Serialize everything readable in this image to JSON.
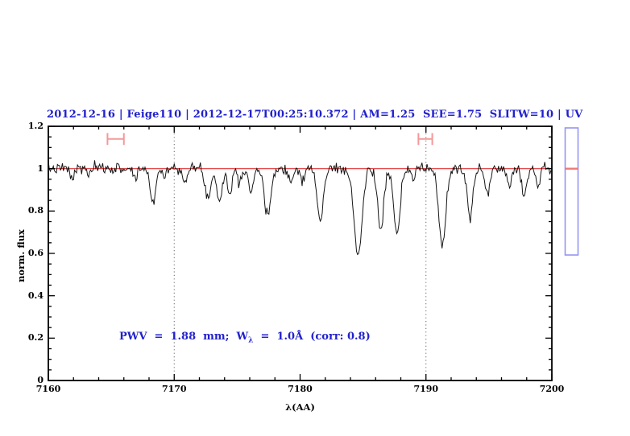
{
  "header": {
    "title": "2012-12-16 | Feige110 | 2012-12-17T00:25:10.372 | AM=1.25  SEE=1.75  SLITW=10 | UV",
    "color": "#2121cd"
  },
  "annotation": {
    "part1": "PWV  =  1.88  mm;  W",
    "sub": "λ",
    "part2": "  =  1.0Å  (corr: 0.8)",
    "color": "#2121cd"
  },
  "chart_data": {
    "type": "line",
    "title": "",
    "xlabel": "λ(AA)",
    "ylabel": "norm. flux",
    "xlim": [
      7160,
      7200
    ],
    "ylim": [
      0,
      1.2
    ],
    "x_tick_values": [
      7160,
      7170,
      7180,
      7190,
      7200
    ],
    "x_tick_labels": [
      "7160",
      "7170",
      "7180",
      "7190",
      "7200"
    ],
    "x_minor_step": 2,
    "y_tick_values": [
      0,
      0.2,
      0.4,
      0.6,
      0.8,
      1,
      1.2
    ],
    "y_tick_labels": [
      "0",
      "0.2",
      "0.4",
      "0.6",
      "0.8",
      "1",
      "1.2"
    ],
    "y_minor_step": 0.05,
    "grid": false,
    "continuum_level": 1.0,
    "continuum_color": "#e03232",
    "spectrum_color": "#151515",
    "guide_color": "#666666",
    "marker_color": "#f49898",
    "noise_sigma": 0.013,
    "sample_step": 0.08,
    "guides_x": [
      7170,
      7190
    ],
    "absorption_lines": [
      {
        "center": 7161.9,
        "depth": 0.05,
        "sigma": 0.15
      },
      {
        "center": 7163.2,
        "depth": 0.03,
        "sigma": 0.12
      },
      {
        "center": 7166.9,
        "depth": 0.05,
        "sigma": 0.14
      },
      {
        "center": 7168.3,
        "depth": 0.17,
        "sigma": 0.2
      },
      {
        "center": 7169.2,
        "depth": 0.04,
        "sigma": 0.12
      },
      {
        "center": 7170.9,
        "depth": 0.06,
        "sigma": 0.15
      },
      {
        "center": 7172.7,
        "depth": 0.14,
        "sigma": 0.22
      },
      {
        "center": 7173.6,
        "depth": 0.15,
        "sigma": 0.2
      },
      {
        "center": 7174.4,
        "depth": 0.12,
        "sigma": 0.18
      },
      {
        "center": 7175.2,
        "depth": 0.06,
        "sigma": 0.14
      },
      {
        "center": 7176.1,
        "depth": 0.11,
        "sigma": 0.18
      },
      {
        "center": 7177.4,
        "depth": 0.23,
        "sigma": 0.25
      },
      {
        "center": 7179.3,
        "depth": 0.07,
        "sigma": 0.15
      },
      {
        "center": 7180.2,
        "depth": 0.05,
        "sigma": 0.14
      },
      {
        "center": 7181.6,
        "depth": 0.25,
        "sigma": 0.24
      },
      {
        "center": 7184.6,
        "depth": 0.41,
        "sigma": 0.32
      },
      {
        "center": 7186.4,
        "depth": 0.29,
        "sigma": 0.24
      },
      {
        "center": 7187.7,
        "depth": 0.32,
        "sigma": 0.26
      },
      {
        "center": 7189.0,
        "depth": 0.05,
        "sigma": 0.14
      },
      {
        "center": 7191.3,
        "depth": 0.36,
        "sigma": 0.28
      },
      {
        "center": 7193.5,
        "depth": 0.24,
        "sigma": 0.22
      },
      {
        "center": 7194.9,
        "depth": 0.12,
        "sigma": 0.18
      },
      {
        "center": 7196.6,
        "depth": 0.08,
        "sigma": 0.15
      },
      {
        "center": 7197.8,
        "depth": 0.13,
        "sigma": 0.18
      },
      {
        "center": 7198.9,
        "depth": 0.08,
        "sigma": 0.14
      }
    ],
    "range_markers": [
      {
        "x1": 7164.7,
        "x2": 7166.0,
        "y": 1.14,
        "cap_half_height": 0.028
      },
      {
        "x1": 7189.4,
        "x2": 7190.5,
        "y": 1.14,
        "cap_half_height": 0.028
      }
    ],
    "scale_bar": {
      "color": "#9595f2",
      "marker_color": "#f07878",
      "marker_flux": 1.0
    }
  }
}
